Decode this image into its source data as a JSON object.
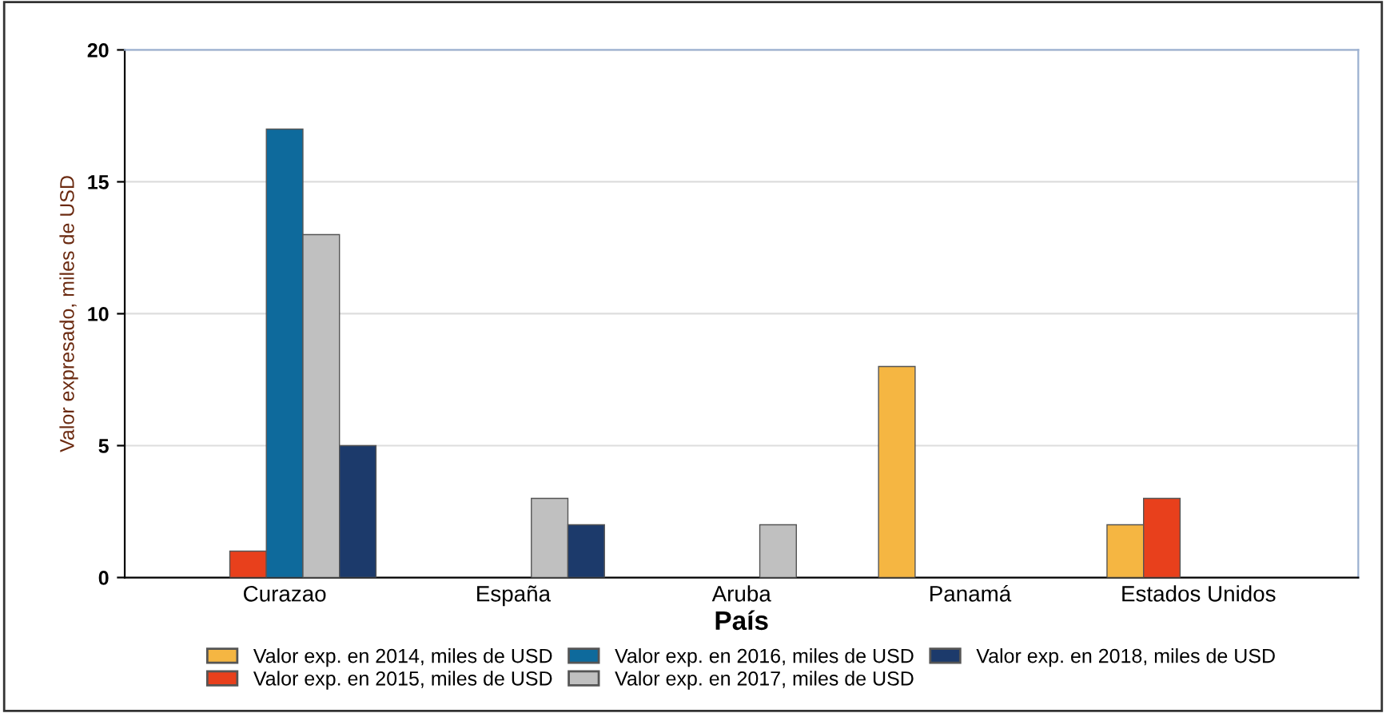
{
  "chart_data": {
    "type": "bar",
    "xlabel": "País",
    "ylabel": "Valor expresado, miles de USD",
    "categories": [
      "Curazao",
      "España",
      "Aruba",
      "Panamá",
      "Estados Unidos"
    ],
    "series": [
      {
        "name": "Valor exp. en 2014, miles de USD",
        "color": "#f5b642",
        "values": [
          null,
          null,
          null,
          8,
          2
        ]
      },
      {
        "name": "Valor exp. en 2015, miles de USD",
        "color": "#e8401c",
        "values": [
          1,
          null,
          null,
          null,
          3
        ]
      },
      {
        "name": "Valor exp. en 2016, miles de USD",
        "color": "#0e6a9c",
        "values": [
          17,
          null,
          null,
          null,
          null
        ]
      },
      {
        "name": "Valor exp. en 2017, miles de USD",
        "color": "#c0c0c0",
        "values": [
          13,
          3,
          2,
          null,
          null
        ]
      },
      {
        "name": "Valor exp. en 2018, miles de USD",
        "color": "#1c3a6b",
        "values": [
          5,
          2,
          null,
          null,
          null
        ]
      }
    ],
    "ylim": [
      0,
      20
    ],
    "yticks": [
      0,
      5,
      10,
      15,
      20
    ],
    "grid": "y",
    "legend": "bottom"
  }
}
